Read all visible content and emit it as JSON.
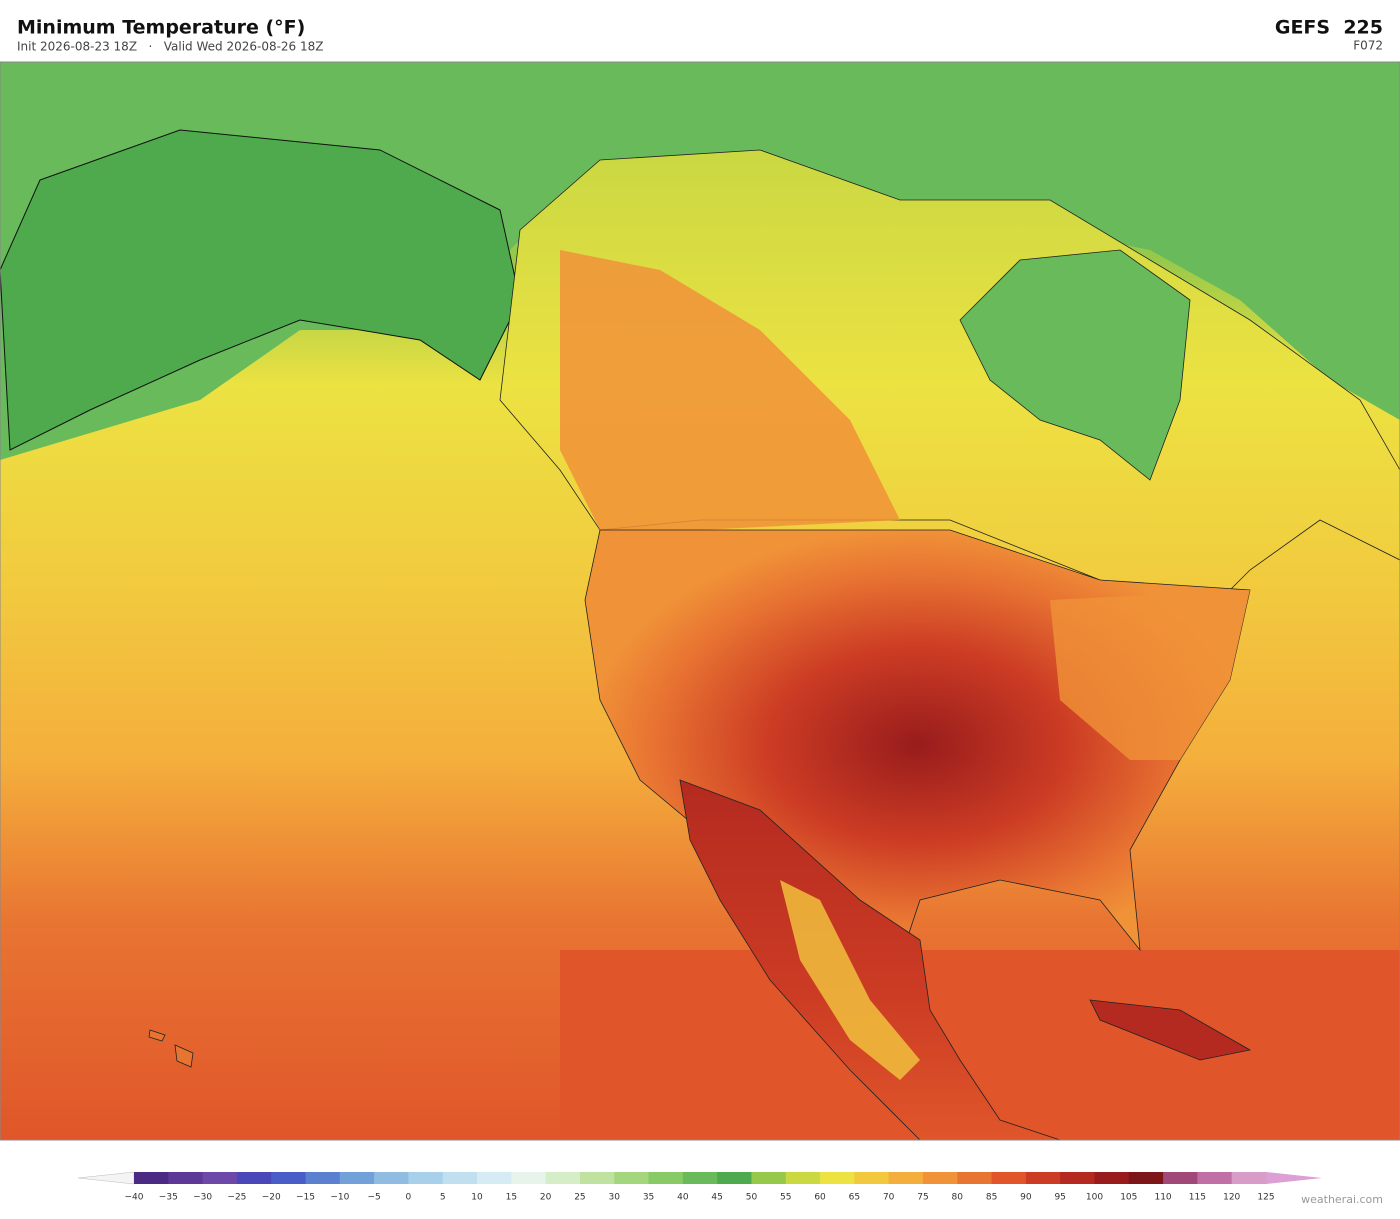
{
  "header": {
    "title": "Minimum Temperature  (°F)",
    "subtitle": "Init 2026-08-23 18Z   ·   Valid Wed 2026-08-26 18Z",
    "model": "GEFS  225",
    "forecast_hour": "F072"
  },
  "colorbar": {
    "ticks": [
      {
        "value": -40,
        "label": "−40"
      },
      {
        "value": -35,
        "label": "−35"
      },
      {
        "value": -30,
        "label": "−30"
      },
      {
        "value": -25,
        "label": "−25"
      },
      {
        "value": -20,
        "label": "−20"
      },
      {
        "value": -15,
        "label": "−15"
      },
      {
        "value": -10,
        "label": "−10"
      },
      {
        "value": -5,
        "label": "−5"
      },
      0,
      5,
      10,
      15,
      20,
      25,
      30,
      35,
      40,
      45,
      50,
      55,
      60,
      65,
      70,
      75,
      80,
      85,
      90,
      95,
      100,
      105,
      110,
      115,
      120,
      125
    ],
    "colors": [
      "#4b2a84",
      "#5d3896",
      "#6c48a8",
      "#4a48b8",
      "#4a5cc8",
      "#5c80d0",
      "#72a0d8",
      "#90bce2",
      "#a8d0ea",
      "#c0e0f0",
      "#d6ecf4",
      "#e6f4ec",
      "#d6eec8",
      "#c0e2a0",
      "#a4d67e",
      "#88ca66",
      "#68ba5a",
      "#4eaa4c",
      "#96c84a",
      "#cad842",
      "#ece242",
      "#f2c83e",
      "#f4ae3c",
      "#f09238",
      "#e87432",
      "#e0562a",
      "#cc3c24",
      "#b42a20",
      "#981c1c",
      "#7c1618",
      "#a04878",
      "#c070a4",
      "#d89cc8"
    ],
    "under_color": "#f4f4f4",
    "over_color": "#dca0d4"
  },
  "footer": {
    "credit": "weatherai.com"
  }
}
